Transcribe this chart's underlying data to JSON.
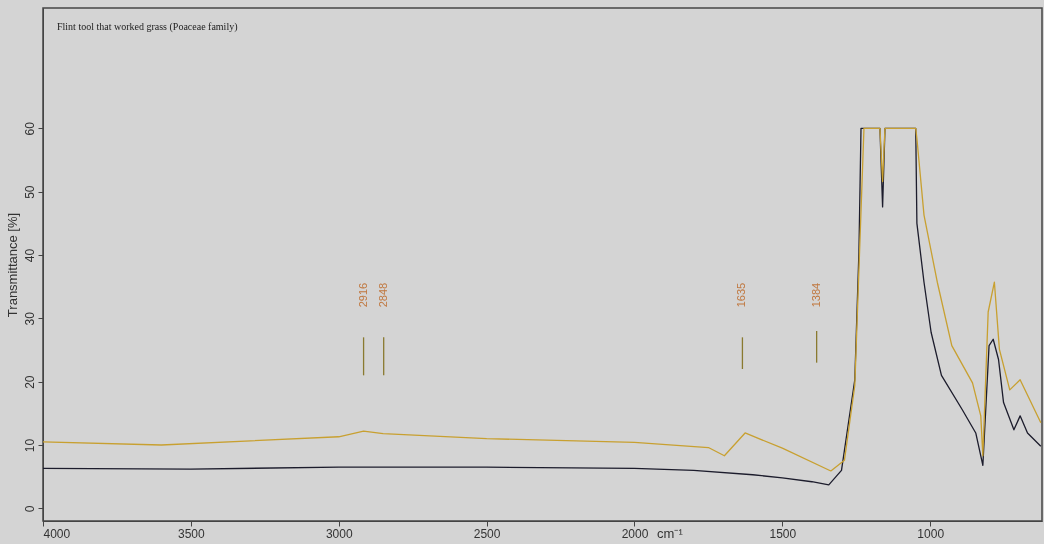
{
  "chart_data": {
    "type": "line",
    "title": "Flint tool that worked grass (Poaceae family)",
    "xlabel": "cm⁻¹",
    "ylabel": "Transmittance [%]",
    "xlim": [
      4000,
      622
    ],
    "ylim": [
      -2,
      79
    ],
    "xticks": [
      4000,
      3500,
      3000,
      2500,
      2000,
      1500,
      1000
    ],
    "yticks": [
      0,
      10,
      20,
      30,
      40,
      50,
      60
    ],
    "grid": false,
    "line_style": "solid",
    "series": [
      {
        "color": "#1c1c2c",
        "x": [
          4000,
          3500,
          3000,
          2500,
          2000,
          1800,
          1600,
          1500,
          1400,
          1343,
          1300,
          1255,
          1241,
          1234,
          1170,
          1161,
          1153,
          1049,
          1045,
          1021,
          997,
          962,
          892,
          846,
          822,
          801,
          787,
          769,
          752,
          717,
          696,
          671,
          626
        ],
        "values": [
          6.3,
          6.2,
          6.5,
          6.5,
          6.3,
          6.0,
          5.3,
          4.8,
          4.2,
          3.7,
          6.0,
          20.3,
          40.5,
          60,
          60,
          47.6,
          60,
          60,
          45,
          35.7,
          27.8,
          21,
          15.6,
          11.9,
          6.8,
          25.7,
          26.7,
          23.5,
          16.7,
          12.4,
          14.6,
          11.9,
          9.8
        ]
      },
      {
        "color": "#c8a030",
        "x": [
          4000,
          3600,
          3000,
          2916,
          2850,
          2500,
          2000,
          1750,
          1696,
          1626,
          1500,
          1336,
          1290,
          1255,
          1224,
          1170,
          1161,
          1153,
          1049,
          1045,
          1021,
          976,
          927,
          857,
          829,
          822,
          804,
          783,
          766,
          731,
          696,
          626
        ],
        "values": [
          10.5,
          10.0,
          11.3,
          12.2,
          11.8,
          11.0,
          10.4,
          9.6,
          8.3,
          11.9,
          9.5,
          5.9,
          7.6,
          19.4,
          60,
          60,
          51.6,
          60,
          60,
          58.4,
          46.3,
          35.7,
          25.7,
          19.8,
          14.6,
          8.3,
          31,
          35.7,
          25.1,
          18.7,
          20.3,
          13.5
        ]
      },
      {
        "color": "#8a7a30",
        "x": [
          2916,
          2916
        ],
        "values": [
          21,
          27
        ]
      },
      {
        "color": "#8a7a30",
        "x": [
          2848,
          2848
        ],
        "values": [
          21,
          27
        ]
      },
      {
        "color": "#8a7a30",
        "x": [
          1635,
          1635
        ],
        "values": [
          22,
          27
        ]
      },
      {
        "color": "#8a7a30",
        "x": [
          1384,
          1384
        ],
        "values": [
          23,
          28
        ]
      }
    ],
    "annotations": [
      {
        "text": "2916",
        "x": 2916,
        "y": 27
      },
      {
        "text": "2848",
        "x": 2848,
        "y": 27
      },
      {
        "text": "1635",
        "x": 1635,
        "y": 27
      },
      {
        "text": "1384",
        "x": 1384,
        "y": 27
      }
    ]
  }
}
